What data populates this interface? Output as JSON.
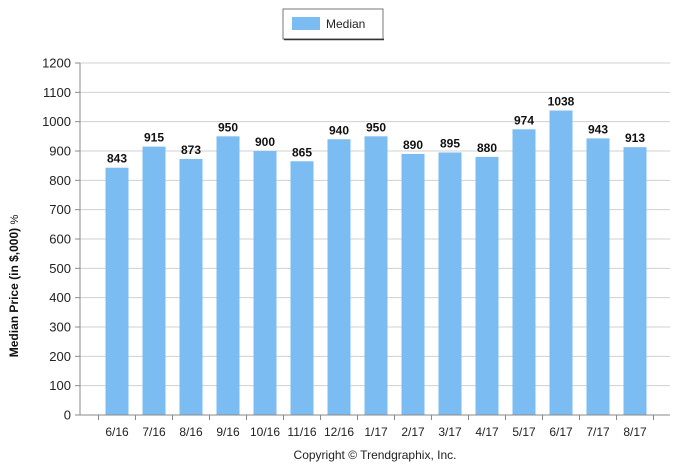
{
  "chart_data": {
    "type": "bar",
    "categories": [
      "6/16",
      "7/16",
      "8/16",
      "9/16",
      "10/16",
      "11/16",
      "12/16",
      "1/17",
      "2/17",
      "3/17",
      "4/17",
      "5/17",
      "6/17",
      "7/17",
      "8/17"
    ],
    "series": [
      {
        "name": "Median",
        "values": [
          843,
          915,
          873,
          950,
          900,
          865,
          940,
          950,
          890,
          895,
          880,
          974,
          1038,
          943,
          913
        ]
      }
    ],
    "data_labels": [
      "843",
      "915",
      "873",
      "950",
      "900",
      "865",
      "940",
      "950",
      "890",
      "895",
      "880",
      "974",
      "1038",
      "943",
      "913"
    ],
    "ylabel": "Median Price (in $,000)",
    "ylabel_unit": "%",
    "xlabel": "",
    "ylim": [
      0,
      1200
    ],
    "yticks": [
      0,
      100,
      200,
      300,
      400,
      500,
      600,
      700,
      800,
      900,
      1000,
      1100,
      1200
    ],
    "grid": true,
    "legend_position": "top-center",
    "bar_color": "#7bbcf2",
    "grid_color": "#d0d0d0",
    "copyright": "Copyright © Trendgraphix, Inc."
  }
}
